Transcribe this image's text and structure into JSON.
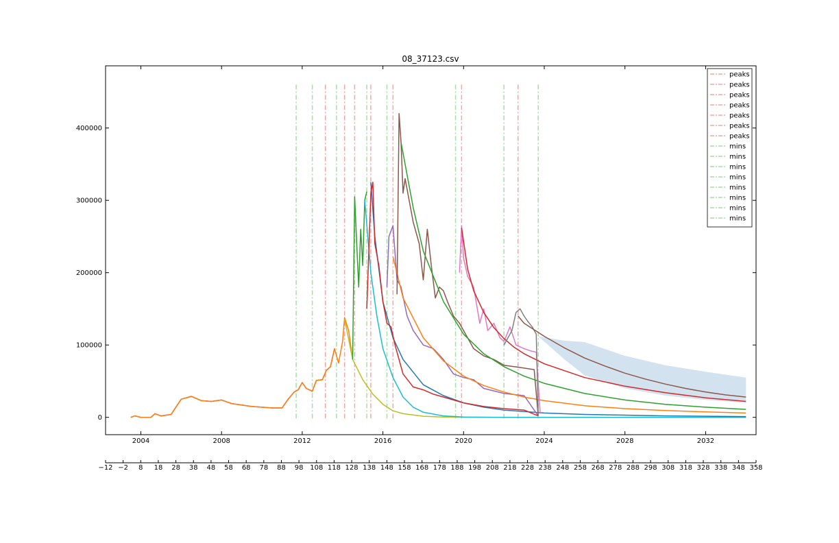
{
  "chart_data": {
    "type": "line",
    "title": "08_37123.csv",
    "xlabel": "",
    "ylabel": "",
    "xlim": [
      2002.25,
      2034.5
    ],
    "ylim": [
      -24000,
      486000
    ],
    "x_ticks": [
      2004,
      2008,
      2012,
      2016,
      2020,
      2024,
      2028,
      2032
    ],
    "x_tick_labels": [
      "2004",
      "2008",
      "2012",
      "2016",
      "2020",
      "2024",
      "2028",
      "2032"
    ],
    "y_ticks": [
      0,
      100000,
      200000,
      300000,
      400000
    ],
    "y_tick_labels": [
      "0",
      "100000",
      "200000",
      "300000",
      "400000"
    ],
    "secondary_x_axis": {
      "xlim": [
        -12,
        358
      ],
      "ticks": [
        -12,
        -2,
        8,
        18,
        28,
        38,
        48,
        58,
        68,
        78,
        88,
        98,
        108,
        118,
        128,
        138,
        148,
        158,
        168,
        178,
        188,
        198,
        208,
        218,
        228,
        238,
        248,
        258,
        268,
        278,
        288,
        298,
        308,
        318,
        328,
        338,
        348,
        358
      ],
      "tick_labels": [
        "−12",
        "−2",
        "8",
        "18",
        "28",
        "38",
        "48",
        "58",
        "68",
        "78",
        "88",
        "98",
        "108",
        "118",
        "128",
        "138",
        "148",
        "158",
        "168",
        "178",
        "188",
        "198",
        "208",
        "218",
        "228",
        "238",
        "248",
        "258",
        "268",
        "278",
        "288",
        "298",
        "308",
        "318",
        "328",
        "338",
        "348",
        "358"
      ]
    },
    "grid": false,
    "legend_position": "top-right",
    "legend": [
      {
        "label": "peaks",
        "color": "#f4a6a6",
        "style": "dashdot"
      },
      {
        "label": "peaks",
        "color": "#f4a6a6",
        "style": "dashdot"
      },
      {
        "label": "peaks",
        "color": "#f4a6a6",
        "style": "dashdot"
      },
      {
        "label": "peaks",
        "color": "#f4a6a6",
        "style": "dashdot"
      },
      {
        "label": "peaks",
        "color": "#f4a6a6",
        "style": "dashdot"
      },
      {
        "label": "peaks",
        "color": "#f4a6a6",
        "style": "dashdot"
      },
      {
        "label": "peaks",
        "color": "#f4a6a6",
        "style": "dashdot"
      },
      {
        "label": "mins",
        "color": "#a8dca8",
        "style": "dashdot"
      },
      {
        "label": "mins",
        "color": "#a8dca8",
        "style": "dashdot"
      },
      {
        "label": "mins",
        "color": "#a8dca8",
        "style": "dashdot"
      },
      {
        "label": "mins",
        "color": "#a8dca8",
        "style": "dashdot"
      },
      {
        "label": "mins",
        "color": "#a8dca8",
        "style": "dashdot"
      },
      {
        "label": "mins",
        "color": "#a8dca8",
        "style": "dashdot"
      },
      {
        "label": "mins",
        "color": "#a8dca8",
        "style": "dashdot"
      },
      {
        "label": "mins",
        "color": "#a8dca8",
        "style": "dashdot"
      }
    ],
    "peak_lines": [
      2013.15,
      2014.1,
      2014.6,
      2015.4,
      2016.5,
      2019.9,
      2022.7
    ],
    "min_lines": [
      2011.7,
      2012.5,
      2013.7,
      2015.2,
      2016.2,
      2019.6,
      2022.0,
      2023.7
    ],
    "vline_top": 460000,
    "series": [
      {
        "color": "#d62728",
        "x": [
          2003.5,
          2003.7,
          2004.0,
          2004.5,
          2004.7,
          2005.0,
          2005.5,
          2006.0,
          2006.5,
          2007.0,
          2007.5,
          2008.0,
          2008.5,
          2009.0,
          2009.5,
          2010.0,
          2010.5,
          2011.0,
          2011.3,
          2011.6,
          2011.8,
          2012.0,
          2012.2,
          2012.5,
          2012.7,
          2013.0,
          2013.2,
          2013.4,
          2013.6
        ],
        "y": [
          0,
          2000,
          0,
          0,
          5000,
          2000,
          4000,
          25000,
          29000,
          23000,
          22000,
          24000,
          19000,
          17000,
          15000,
          14000,
          13000,
          13000,
          25000,
          35000,
          38000,
          48000,
          40000,
          36000,
          51000,
          52000,
          65000,
          70000,
          95000
        ]
      },
      {
        "color": "#ff7f0e",
        "x": [
          2003.5,
          2003.7,
          2004.0,
          2004.5,
          2004.7,
          2005.0,
          2005.5,
          2006.0,
          2006.5,
          2007.0,
          2007.5,
          2008.0,
          2008.5,
          2009.0,
          2009.5,
          2010.0,
          2010.5,
          2011.0,
          2011.3,
          2011.6,
          2011.8,
          2012.0,
          2012.2,
          2012.5,
          2012.7,
          2013.0,
          2013.2,
          2013.4,
          2013.6,
          2013.8,
          2014.0,
          2014.1,
          2014.3,
          2014.5
        ],
        "y": [
          0,
          2000,
          0,
          0,
          5000,
          2000,
          4000,
          25000,
          29000,
          23000,
          22000,
          24000,
          19000,
          17000,
          15000,
          14000,
          13000,
          13000,
          25000,
          35000,
          38000,
          48000,
          40000,
          36000,
          51000,
          52000,
          65000,
          70000,
          95000,
          75000,
          105000,
          138000,
          120000,
          80000
        ]
      },
      {
        "color": "#bcbd22",
        "x": [
          2014.1,
          2014.5,
          2015.0,
          2015.5,
          2016.0,
          2016.5,
          2017.0,
          2018.0,
          2019.0,
          2020.0,
          2022.0,
          2024.0,
          2028.0,
          2034.0
        ],
        "y": [
          136000,
          80000,
          52000,
          32000,
          18000,
          9000,
          5000,
          1500,
          400,
          100,
          0,
          0,
          0,
          0
        ]
      },
      {
        "color": "#2ca02c",
        "x": [
          2014.5,
          2014.6,
          2014.7,
          2014.8,
          2014.9,
          2015.0,
          2015.1,
          2015.2
        ],
        "y": [
          80000,
          305000,
          240000,
          180000,
          260000,
          210000,
          300000,
          312000
        ]
      },
      {
        "color": "#17becf",
        "x": [
          2015.1,
          2015.4,
          2015.7,
          2016.0,
          2016.5,
          2017.0,
          2017.5,
          2018.0,
          2019.0,
          2020.0,
          2022.0,
          2024.0,
          2028.0,
          2034.0
        ],
        "y": [
          300000,
          200000,
          140000,
          95000,
          55000,
          28000,
          14000,
          7000,
          2000,
          500,
          0,
          0,
          0,
          0
        ]
      },
      {
        "color": "#1f77b4",
        "x": [
          2015.4,
          2015.6,
          2016.0,
          2016.5,
          2017.0,
          2018.0,
          2019.0,
          2020.0,
          2021.0,
          2022.0,
          2023.0,
          2024.0,
          2026.0,
          2028.0,
          2030.0,
          2034.0
        ],
        "y": [
          325000,
          250000,
          160000,
          110000,
          80000,
          45000,
          30000,
          20000,
          14000,
          10000,
          8000,
          6000,
          4000,
          3000,
          2000,
          1000
        ]
      },
      {
        "color": "#d62728",
        "x": [
          2015.2,
          2015.4,
          2015.5,
          2015.6,
          2015.8,
          2016.0,
          2016.2,
          2016.4,
          2016.6,
          2017.0,
          2017.5,
          2018.0,
          2018.5,
          2019.0,
          2020.0,
          2021.0,
          2022.0,
          2023.0,
          2023.7
        ],
        "y": [
          150000,
          310000,
          325000,
          240000,
          210000,
          160000,
          130000,
          125000,
          100000,
          60000,
          42000,
          38000,
          32000,
          28000,
          20000,
          15000,
          12000,
          10000,
          2000
        ]
      },
      {
        "color": "#9467bd",
        "x": [
          2016.2,
          2016.3,
          2016.5,
          2016.7,
          2016.9,
          2017.2,
          2017.5,
          2018.0,
          2018.5,
          2019.0,
          2019.5,
          2020.0,
          2020.5,
          2021.0,
          2022.0,
          2023.0,
          2023.7
        ],
        "y": [
          180000,
          250000,
          265000,
          190000,
          180000,
          140000,
          120000,
          100000,
          95000,
          80000,
          60000,
          55000,
          52000,
          40000,
          33000,
          30000,
          2000
        ]
      },
      {
        "color": "#ff7f0e",
        "x": [
          2016.5,
          2017.0,
          2018.0,
          2019.0,
          2020.0,
          2021.0,
          2022.0,
          2023.0,
          2024.0,
          2026.0,
          2028.0,
          2030.0,
          2032.0,
          2034.0
        ],
        "y": [
          222000,
          165000,
          110000,
          78000,
          57000,
          44000,
          35000,
          28000,
          23000,
          16000,
          12000,
          9500,
          7500,
          6000
        ]
      },
      {
        "color": "#8c564b",
        "x": [
          2016.7,
          2016.8,
          2016.9,
          2017.0,
          2017.1,
          2017.3,
          2017.5,
          2017.8,
          2018.0,
          2018.2,
          2018.4,
          2018.6,
          2018.8,
          2019.0,
          2019.2,
          2019.5,
          2019.8,
          2020.0,
          2020.5,
          2021.0,
          2021.5,
          2022.0,
          2022.5,
          2023.0,
          2023.5,
          2023.7
        ],
        "y": [
          170000,
          420000,
          380000,
          310000,
          330000,
          300000,
          270000,
          240000,
          190000,
          260000,
          210000,
          165000,
          180000,
          175000,
          160000,
          140000,
          130000,
          120000,
          95000,
          85000,
          80000,
          72000,
          70000,
          68000,
          66000,
          2000
        ]
      },
      {
        "color": "#2ca02c",
        "x": [
          2016.9,
          2017.5,
          2018.0,
          2019.0,
          2020.0,
          2021.0,
          2022.0,
          2023.0,
          2024.0,
          2026.0,
          2028.0,
          2030.0,
          2032.0,
          2034.0
        ],
        "y": [
          380000,
          290000,
          230000,
          160000,
          115000,
          88000,
          70000,
          57000,
          47000,
          33000,
          24000,
          18000,
          14000,
          11000
        ]
      },
      {
        "color": "#e377c2",
        "x": [
          2019.8,
          2019.9,
          2020.0,
          2020.2,
          2020.5,
          2020.8,
          2021.0,
          2021.2,
          2021.5,
          2021.8,
          2022.0,
          2022.3,
          2022.6,
          2023.0,
          2023.3,
          2023.6,
          2023.8
        ],
        "y": [
          200000,
          265000,
          220000,
          195000,
          180000,
          130000,
          150000,
          120000,
          130000,
          110000,
          105000,
          125000,
          100000,
          95000,
          92000,
          90000,
          5000
        ]
      },
      {
        "color": "#d62728",
        "x": [
          2019.9,
          2020.2,
          2020.5,
          2021.0,
          2021.5,
          2022.0,
          2022.5,
          2023.0,
          2024.0,
          2026.0,
          2028.0,
          2030.0,
          2032.0,
          2034.0
        ],
        "y": [
          262000,
          205000,
          175000,
          145000,
          124000,
          109000,
          97000,
          88000,
          74000,
          55000,
          43000,
          34000,
          27000,
          22000
        ]
      },
      {
        "color": "#7f7f7f",
        "x": [
          2022.0,
          2022.2,
          2022.4,
          2022.6,
          2022.8,
          2023.0,
          2023.2,
          2023.4,
          2023.6,
          2023.7
        ],
        "y": [
          100000,
          110000,
          120000,
          145000,
          150000,
          140000,
          132000,
          125000,
          115000,
          5000
        ]
      },
      {
        "color": "#8c564b",
        "x": [
          2022.7,
          2023.0,
          2024.0,
          2025.0,
          2026.0,
          2027.0,
          2028.0,
          2029.0,
          2030.0,
          2031.0,
          2032.0,
          2033.0,
          2034.0
        ],
        "y": [
          140000,
          130000,
          112000,
          96000,
          82000,
          71000,
          61000,
          53000,
          46000,
          40000,
          35000,
          31000,
          28000
        ]
      }
    ],
    "confidence_band": {
      "color": "#a6c8e0",
      "x": [
        2023.7,
        2025.0,
        2026.0,
        2028.0,
        2030.0,
        2032.0,
        2034.0
      ],
      "upper": [
        112000,
        106000,
        104000,
        85000,
        72000,
        63000,
        55000
      ],
      "lower": [
        112000,
        80000,
        58000,
        40000,
        30000,
        24000,
        20000
      ]
    }
  }
}
